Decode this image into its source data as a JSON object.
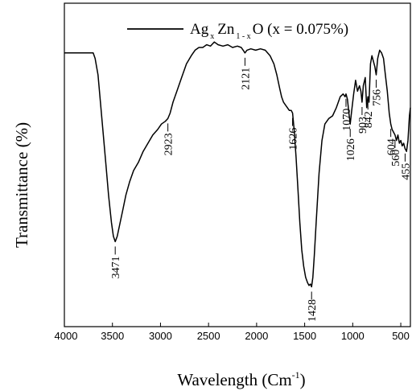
{
  "chart_data": {
    "type": "line",
    "xlabel": "Wavelength (Cm",
    "xlabel_sup": "-1",
    "xlabel_close": ")",
    "ylabel": "Transmittance (%)",
    "xlim": [
      4000,
      400
    ],
    "x_ticks": [
      "4000",
      "3500",
      "3000",
      "2500",
      "2000",
      "1500",
      "1000",
      "500"
    ],
    "legend": {
      "main": "Ag",
      "sub1": "x",
      "mid": "Zn",
      "sub2": "1 - x",
      "tail": "O (x = 0.075%)",
      "position": "top-right"
    },
    "series": [
      {
        "x": [
          4000,
          3700,
          3680,
          3650,
          3630,
          3600,
          3570,
          3540,
          3510,
          3490,
          3471,
          3450,
          3420,
          3390,
          3360,
          3320,
          3280,
          3230,
          3180,
          3130,
          3080,
          3030,
          2990,
          2950,
          2923,
          2900,
          2870,
          2830,
          2780,
          2730,
          2680,
          2640,
          2600,
          2560,
          2520,
          2480,
          2440,
          2400,
          2350,
          2300,
          2250,
          2200,
          2160,
          2140,
          2121,
          2100,
          2060,
          2010,
          1960,
          1910,
          1860,
          1820,
          1790,
          1760,
          1740,
          1720,
          1700,
          1680,
          1660,
          1640,
          1626,
          1610,
          1590,
          1570,
          1550,
          1530,
          1510,
          1490,
          1470,
          1455,
          1440,
          1428,
          1415,
          1400,
          1380,
          1350,
          1320,
          1290,
          1250,
          1210,
          1170,
          1130,
          1100,
          1080,
          1070,
          1055,
          1040,
          1026,
          1010,
          990,
          970,
          950,
          930,
          915,
          903,
          890,
          870,
          855,
          842,
          830,
          815,
          800,
          785,
          770,
          756,
          740,
          720,
          700,
          680,
          660,
          640,
          620,
          604,
          590,
          575,
          560,
          545,
          530,
          515,
          500,
          485,
          470,
          455,
          440,
          425,
          410,
          400
        ],
        "y": [
          88,
          88,
          86,
          80,
          72,
          60,
          48,
          36,
          26,
          21,
          19,
          21,
          26,
          31,
          36,
          41,
          45,
          48,
          52,
          55,
          58,
          60,
          62,
          63,
          64,
          66,
          70,
          74,
          79,
          84,
          87,
          89,
          90,
          90,
          91,
          90.5,
          92,
          91,
          90.5,
          91,
          90,
          90.5,
          90,
          89,
          88,
          89,
          89.5,
          89,
          89.5,
          89,
          87,
          84,
          80,
          75,
          72,
          70,
          69,
          68,
          67,
          67,
          66,
          60,
          50,
          38,
          26,
          16,
          10,
          6,
          4,
          3,
          3.5,
          2.5,
          6,
          14,
          26,
          44,
          56,
          62,
          64,
          65,
          68,
          72,
          73,
          72,
          73,
          71,
          66,
          62,
          67,
          73,
          78,
          74,
          76,
          74,
          70,
          76,
          79,
          68,
          72,
          70,
          84,
          87,
          85,
          83,
          80,
          86,
          89,
          88,
          86,
          80,
          74,
          66,
          62,
          60,
          59,
          58,
          56,
          58,
          55,
          56,
          54,
          55,
          53,
          52,
          56,
          65,
          68
        ]
      }
    ],
    "peaks": [
      {
        "wavenumber": 3471,
        "label": "3471",
        "side": "below"
      },
      {
        "wavenumber": 2923,
        "label": "2923",
        "side": "below"
      },
      {
        "wavenumber": 2121,
        "label": "2121",
        "side": "below"
      },
      {
        "wavenumber": 1626,
        "label": "1626",
        "side": "below"
      },
      {
        "wavenumber": 1428,
        "label": "1428",
        "side": "below"
      },
      {
        "wavenumber": 1070,
        "label": "1070",
        "side": "below"
      },
      {
        "wavenumber": 1026,
        "label": "1026",
        "side": "below"
      },
      {
        "wavenumber": 903,
        "label": "903",
        "side": "below"
      },
      {
        "wavenumber": 842,
        "label": "842",
        "side": "below"
      },
      {
        "wavenumber": 756,
        "label": "756",
        "side": "below"
      },
      {
        "wavenumber": 604,
        "label": "604",
        "side": "below"
      },
      {
        "wavenumber": 560,
        "label": "560",
        "side": "below"
      },
      {
        "wavenumber": 455,
        "label": "455",
        "side": "below"
      }
    ]
  }
}
